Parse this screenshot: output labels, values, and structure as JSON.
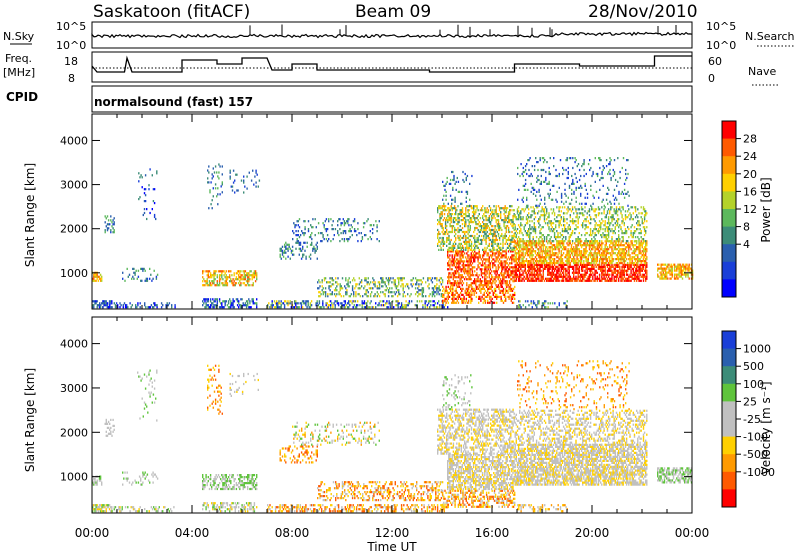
{
  "header": {
    "station": "Saskatoon (fitACF)",
    "beam": "Beam 09",
    "date": "28/Nov/2010"
  },
  "top_panels": {
    "nsky_label": "N.Sky",
    "nsky_ticks": [
      "10^5",
      "10^0"
    ],
    "nsearch_label": "N.Search",
    "nsearch_ticks": [
      "10^5",
      "10^0"
    ],
    "freq_label_1": "Freq.",
    "freq_label_2": "[MHz]",
    "freq_ticks": [
      "18",
      "8"
    ],
    "nave_label": "Nave",
    "nave_ticks": [
      "60",
      "0"
    ],
    "cpid_label": "CPID",
    "cpid_text": "normalsound (fast) 157"
  },
  "chart_data": [
    {
      "type": "heatmap",
      "name": "power",
      "ylabel": "Slant Range [km]",
      "yticks": [
        "4000",
        "3000",
        "2000",
        "1000"
      ],
      "ylim": [
        180,
        4600
      ],
      "colorbar": {
        "label": "Power [dB]",
        "ticks": [
          "28",
          "24",
          "20",
          "16",
          "12",
          "8",
          "4"
        ],
        "colors": [
          "#ff0000",
          "#ff5a00",
          "#ff9a00",
          "#ffd000",
          "#b4d22a",
          "#5cb85c",
          "#3c8c78",
          "#2a5fae",
          "#1a3fd8",
          "#0000ff"
        ]
      }
    },
    {
      "type": "heatmap",
      "name": "velocity",
      "ylabel": "Slant Range [km]",
      "yticks": [
        "4000",
        "3000",
        "2000",
        "1000"
      ],
      "ylim": [
        180,
        4600
      ],
      "colorbar": {
        "label": "Velocity [m s⁻¹]",
        "ticks": [
          "1000",
          "500",
          "100",
          "25",
          "-25",
          "-100",
          "-500",
          "-1000"
        ],
        "colors": [
          "#1a3fd8",
          "#2a5fae",
          "#3c8c78",
          "#5fc43c",
          "#c0c0c0",
          "#c0c0c0",
          "#ffd000",
          "#ff9a00",
          "#ff5a00",
          "#ff0000"
        ]
      },
      "xlabel": "Time UT",
      "xticks": [
        "00:00",
        "04:00",
        "08:00",
        "12:00",
        "16:00",
        "20:00",
        "00:00"
      ]
    }
  ]
}
